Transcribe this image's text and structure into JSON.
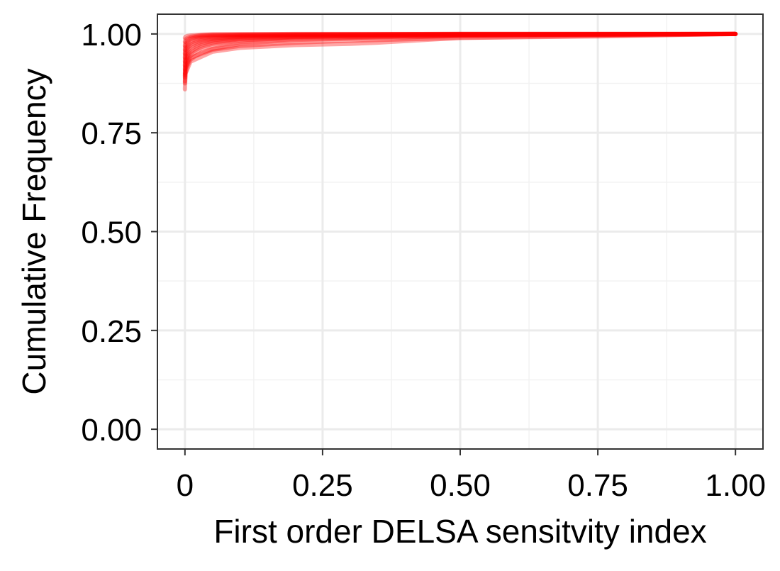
{
  "chart_data": {
    "type": "line",
    "title": "",
    "xlabel": "First order DELSA sensitvity index",
    "ylabel": "Cumulative Frequency",
    "xlim": [
      -0.05,
      1.05
    ],
    "ylim": [
      -0.05,
      1.05
    ],
    "x_ticks": [
      0,
      0.25,
      0.5,
      0.75,
      1.0
    ],
    "x_tick_labels": [
      "0",
      "0.25",
      "0.50",
      "0.75",
      "1.00"
    ],
    "y_ticks": [
      0,
      0.25,
      0.5,
      0.75,
      1.0
    ],
    "y_tick_labels": [
      "0.00",
      "0.25",
      "0.50",
      "0.75",
      "1.00"
    ],
    "grid": true,
    "legend": "none",
    "line_color": "#ff0000",
    "line_opacity": 0.35,
    "series_note": "many overlapping empirical cumulative distribution curves",
    "series": [
      {
        "x": [
          0,
          0.001,
          0.005,
          0.01,
          0.02,
          0.03,
          0.05,
          0.1,
          0.2,
          0.5,
          1.0
        ],
        "y": [
          0.86,
          0.9,
          0.92,
          0.935,
          0.945,
          0.953,
          0.962,
          0.975,
          0.985,
          0.995,
          1.0
        ]
      },
      {
        "x": [
          0,
          0.001,
          0.005,
          0.01,
          0.02,
          0.03,
          0.05,
          0.1,
          0.2,
          0.5,
          1.0
        ],
        "y": [
          0.88,
          0.91,
          0.93,
          0.945,
          0.955,
          0.962,
          0.97,
          0.98,
          0.988,
          0.996,
          1.0
        ]
      },
      {
        "x": [
          0,
          0.001,
          0.005,
          0.01,
          0.02,
          0.03,
          0.05,
          0.1,
          0.2,
          0.5,
          1.0
        ],
        "y": [
          0.89,
          0.925,
          0.94,
          0.95,
          0.96,
          0.967,
          0.975,
          0.984,
          0.99,
          0.997,
          1.0
        ]
      },
      {
        "x": [
          0,
          0.001,
          0.005,
          0.01,
          0.02,
          0.03,
          0.05,
          0.1,
          0.2,
          0.5,
          1.0
        ],
        "y": [
          0.9,
          0.93,
          0.945,
          0.955,
          0.965,
          0.972,
          0.979,
          0.987,
          0.992,
          0.997,
          1.0
        ]
      },
      {
        "x": [
          0,
          0.001,
          0.005,
          0.01,
          0.02,
          0.03,
          0.05,
          0.1,
          0.2,
          0.5,
          1.0
        ],
        "y": [
          0.91,
          0.935,
          0.95,
          0.962,
          0.97,
          0.976,
          0.982,
          0.989,
          0.993,
          0.998,
          1.0
        ]
      },
      {
        "x": [
          0,
          0.001,
          0.005,
          0.01,
          0.02,
          0.03,
          0.05,
          0.1,
          0.2,
          0.5,
          1.0
        ],
        "y": [
          0.92,
          0.945,
          0.958,
          0.968,
          0.975,
          0.98,
          0.985,
          0.991,
          0.995,
          0.998,
          1.0
        ]
      },
      {
        "x": [
          0,
          0.001,
          0.005,
          0.01,
          0.02,
          0.03,
          0.05,
          0.1,
          0.2,
          0.5,
          1.0
        ],
        "y": [
          0.93,
          0.952,
          0.965,
          0.973,
          0.979,
          0.984,
          0.988,
          0.993,
          0.996,
          0.999,
          1.0
        ]
      },
      {
        "x": [
          0,
          0.001,
          0.005,
          0.01,
          0.02,
          0.03,
          0.05,
          0.1,
          0.2,
          0.5,
          1.0
        ],
        "y": [
          0.94,
          0.96,
          0.97,
          0.978,
          0.983,
          0.987,
          0.99,
          0.994,
          0.997,
          0.999,
          1.0
        ]
      },
      {
        "x": [
          0,
          0.001,
          0.005,
          0.01,
          0.02,
          0.03,
          0.05,
          0.1,
          0.2,
          0.5,
          1.0
        ],
        "y": [
          0.95,
          0.967,
          0.976,
          0.982,
          0.987,
          0.99,
          0.993,
          0.996,
          0.998,
          0.999,
          1.0
        ]
      },
      {
        "x": [
          0,
          0.001,
          0.005,
          0.01,
          0.02,
          0.03,
          0.05,
          0.1,
          0.2,
          0.5,
          1.0
        ],
        "y": [
          0.96,
          0.974,
          0.982,
          0.987,
          0.991,
          0.993,
          0.995,
          0.997,
          0.998,
          1.0,
          1.0
        ]
      },
      {
        "x": [
          0,
          0.001,
          0.005,
          0.01,
          0.02,
          0.03,
          0.05,
          0.1,
          0.2,
          0.5,
          1.0
        ],
        "y": [
          0.97,
          0.98,
          0.986,
          0.99,
          0.993,
          0.995,
          0.997,
          0.998,
          0.999,
          1.0,
          1.0
        ]
      },
      {
        "x": [
          0,
          0.001,
          0.005,
          0.01,
          0.02,
          0.03,
          0.05,
          0.1,
          0.2,
          0.5,
          1.0
        ],
        "y": [
          0.98,
          0.986,
          0.99,
          0.993,
          0.995,
          0.997,
          0.998,
          0.999,
          0.999,
          1.0,
          1.0
        ]
      },
      {
        "x": [
          0,
          0.001,
          0.005,
          0.01,
          0.02,
          0.03,
          0.05,
          0.1,
          0.2,
          0.5,
          1.0
        ],
        "y": [
          0.99,
          0.993,
          0.995,
          0.996,
          0.997,
          0.998,
          0.999,
          0.999,
          1.0,
          1.0,
          1.0
        ]
      },
      {
        "x": [
          0,
          0.001,
          0.01,
          0.05,
          0.1,
          0.2,
          0.3,
          0.35,
          0.5,
          1.0
        ],
        "y": [
          0.875,
          0.9,
          0.93,
          0.955,
          0.965,
          0.972,
          0.975,
          0.978,
          0.99,
          1.0
        ]
      },
      {
        "x": [
          0,
          0.001,
          0.01,
          0.05,
          0.1,
          0.2,
          0.3,
          0.5,
          0.75,
          1.0
        ],
        "y": [
          0.895,
          0.915,
          0.94,
          0.96,
          0.97,
          0.978,
          0.983,
          0.99,
          0.994,
          1.0
        ]
      }
    ]
  }
}
